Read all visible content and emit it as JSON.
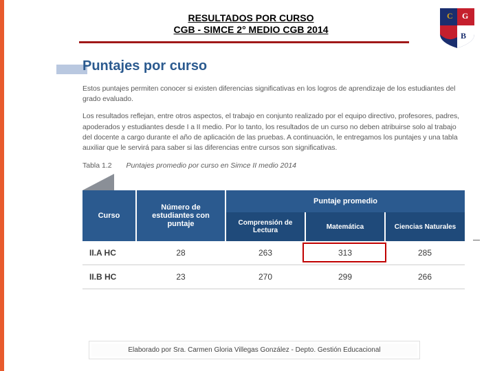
{
  "header": {
    "line1": "RESULTADOS POR CURSO",
    "line2": "CGB  - SIMCE 2° MEDIO CGB 2014"
  },
  "logo": {
    "colors": {
      "blue": "#1a2e6e",
      "red": "#c51f2d",
      "white": "#ffffff",
      "gold": "#d4a017"
    }
  },
  "section": {
    "title": "Puntajes por curso",
    "para1": "Estos puntajes permiten conocer si existen diferencias significativas en los logros de aprendizaje de los estudiantes del grado evaluado.",
    "para2": "Los resultados reflejan, entre otros aspectos, el trabajo en conjunto realizado por el equipo directivo, profesores, padres, apoderados y estudiantes desde I a II medio. Por lo tanto, los resultados de un curso no deben atribuirse solo al trabajo del docente a cargo durante el año de aplicación de las pruebas. A continuación, le entregamos los puntajes y una tabla auxiliar que le servirá para saber si las diferencias entre cursos son significativas."
  },
  "table": {
    "label_prefix": "Tabla 1.2",
    "label_text": "Puntajes promedio por curso en Simce II medio 2014",
    "header_group": "Puntaje promedio",
    "columns": [
      "Curso",
      "Número de estudiantes con puntaje",
      "Comprensión de Lectura",
      "Matemática",
      "Ciencias Naturales"
    ],
    "rows": [
      {
        "curso": "II.A HC",
        "n": "28",
        "lectura": "263",
        "mat": "313",
        "cn": "285"
      },
      {
        "curso": "II.B HC",
        "n": "23",
        "lectura": "270",
        "mat": "299",
        "cn": "266"
      }
    ],
    "highlight": {
      "row": 0,
      "col": "mat"
    },
    "colors": {
      "header_bg": "#2b5a8f",
      "subheader_bg": "#1f4a7a",
      "text": "#ffffff",
      "highlight_border": "#c00000"
    }
  },
  "footer": {
    "text": "Elaborado por Sra. Carmen Gloria Villegas González - Depto. Gestión Educacional"
  },
  "accent_bar_color": "#e85a2c"
}
